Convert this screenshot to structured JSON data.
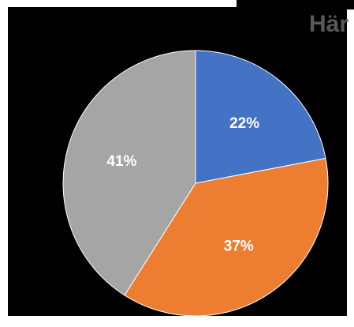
{
  "chart_data": {
    "type": "pie",
    "title": "Här",
    "values": [
      22,
      37,
      41
    ],
    "value_labels": [
      "22%",
      "37%",
      "41%"
    ],
    "colors": [
      "#4472c4",
      "#ed7d31",
      "#a5a5a5"
    ],
    "start_angle": 0,
    "direction": "clockwise"
  }
}
